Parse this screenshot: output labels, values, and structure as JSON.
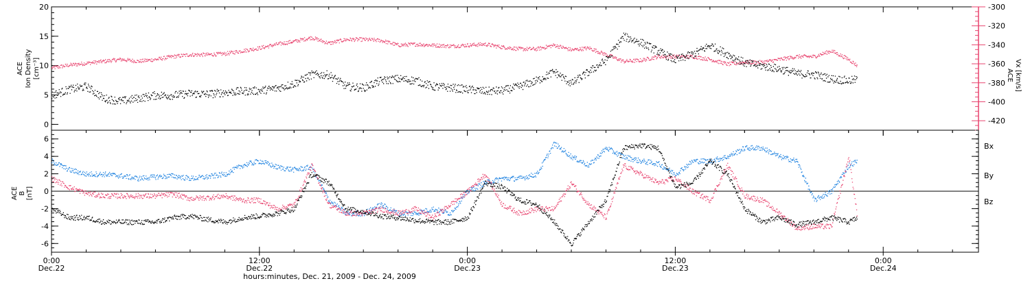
{
  "colors": {
    "black": "#000000",
    "pink": "#e8436e",
    "blue": "#1e82e0"
  },
  "xaxis": {
    "title": "hours:minutes, Dec. 21, 2009 - Dec. 24, 2009",
    "ticks": [
      {
        "hours": 0,
        "time": "0:00",
        "date": "Dec.22"
      },
      {
        "hours": 12,
        "time": "12:00",
        "date": "Dec.22"
      },
      {
        "hours": 24,
        "time": "0:00",
        "date": "Dec.23"
      },
      {
        "hours": 36,
        "time": "12:00",
        "date": "Dec.23"
      },
      {
        "hours": 48,
        "time": "0:00",
        "date": "Dec.24"
      }
    ],
    "range_hours": [
      0,
      53.5
    ]
  },
  "chart_data": [
    {
      "type": "scatter",
      "panel": "top",
      "left_axis": {
        "label_lines": [
          "ACE",
          "Ion Density",
          "[cm⁻³]"
        ],
        "ylim": [
          -1,
          20
        ],
        "ticks": [
          0,
          5,
          10,
          15,
          20
        ]
      },
      "right_axis": {
        "label": "ACE Vx [km/s]",
        "label_lines": [
          "ACE",
          "Vx [km/s]"
        ],
        "ylim": [
          -430,
          -300
        ],
        "ticks": [
          -420,
          -400,
          -380,
          -360,
          -340,
          -320,
          -300
        ]
      },
      "series": [
        {
          "axis": "left",
          "color_key": "black",
          "points": [
            [
              0,
              5
            ],
            [
              1,
              6
            ],
            [
              2,
              6.5
            ],
            [
              3,
              4.5
            ],
            [
              4,
              4
            ],
            [
              5,
              4.5
            ],
            [
              6,
              5
            ],
            [
              7,
              5
            ],
            [
              8,
              5.3
            ],
            [
              9,
              5.2
            ],
            [
              10,
              5.5
            ],
            [
              11,
              5.7
            ],
            [
              12,
              5.8
            ],
            [
              13,
              6.2
            ],
            [
              14,
              7
            ],
            [
              15,
              8.5
            ],
            [
              16,
              8.5
            ],
            [
              17,
              6.5
            ],
            [
              18,
              6.3
            ],
            [
              19,
              7.5
            ],
            [
              20,
              7.8
            ],
            [
              21,
              7.5
            ],
            [
              22,
              6.5
            ],
            [
              23,
              6.3
            ],
            [
              24,
              6
            ],
            [
              25,
              5.7
            ],
            [
              26,
              5.8
            ],
            [
              27,
              6.5
            ],
            [
              28,
              7.5
            ],
            [
              29,
              9
            ],
            [
              30,
              7
            ],
            [
              31,
              9
            ],
            [
              32,
              11
            ],
            [
              33,
              15
            ],
            [
              34,
              14
            ],
            [
              35,
              12.5
            ],
            [
              36,
              11
            ],
            [
              37,
              12
            ],
            [
              38,
              13.5
            ],
            [
              39,
              12
            ],
            [
              40,
              10.5
            ],
            [
              41,
              10
            ],
            [
              42,
              9.5
            ],
            [
              43,
              8.7
            ],
            [
              44,
              8.5
            ],
            [
              45,
              7.8
            ],
            [
              46,
              7.5
            ],
            [
              46.5,
              7.7
            ]
          ]
        },
        {
          "axis": "right",
          "color_key": "pink",
          "points": [
            [
              0,
              -364
            ],
            [
              1,
              -361
            ],
            [
              2,
              -359
            ],
            [
              3,
              -357
            ],
            [
              4,
              -355
            ],
            [
              5,
              -357
            ],
            [
              6,
              -355
            ],
            [
              7,
              -352
            ],
            [
              8,
              -350
            ],
            [
              9,
              -350
            ],
            [
              10,
              -349
            ],
            [
              11,
              -346
            ],
            [
              12,
              -343
            ],
            [
              13,
              -339
            ],
            [
              14,
              -336
            ],
            [
              15,
              -332
            ],
            [
              16,
              -338
            ],
            [
              17,
              -334
            ],
            [
              18,
              -334
            ],
            [
              19,
              -335
            ],
            [
              20,
              -340
            ],
            [
              21,
              -339
            ],
            [
              22,
              -340
            ],
            [
              23,
              -341
            ],
            [
              24,
              -340
            ],
            [
              25,
              -339
            ],
            [
              26,
              -342
            ],
            [
              27,
              -344
            ],
            [
              28,
              -344
            ],
            [
              29,
              -340
            ],
            [
              30,
              -345
            ],
            [
              31,
              -343
            ],
            [
              32,
              -350
            ],
            [
              33,
              -357
            ],
            [
              34,
              -356
            ],
            [
              35,
              -352
            ],
            [
              36,
              -352
            ],
            [
              37,
              -352
            ],
            [
              38,
              -355
            ],
            [
              39,
              -360
            ],
            [
              40,
              -358
            ],
            [
              41,
              -358
            ],
            [
              42,
              -355
            ],
            [
              43,
              -352
            ],
            [
              44,
              -352
            ],
            [
              45,
              -346
            ],
            [
              46,
              -355
            ],
            [
              46.5,
              -362
            ]
          ]
        }
      ]
    },
    {
      "type": "scatter",
      "panel": "bottom",
      "left_axis": {
        "label_lines": [
          "ACE",
          "B",
          "[nT]"
        ],
        "ylim": [
          -7,
          7
        ],
        "ticks": [
          -6,
          -4,
          -2,
          0,
          2,
          4,
          6
        ]
      },
      "legend_position": "right",
      "series": [
        {
          "name": "Bx",
          "color_key": "black",
          "points": [
            [
              0,
              -2
            ],
            [
              1,
              -3
            ],
            [
              2,
              -3
            ],
            [
              3,
              -3.5
            ],
            [
              4,
              -3.5
            ],
            [
              5,
              -3.5
            ],
            [
              6,
              -3.5
            ],
            [
              7,
              -3
            ],
            [
              8,
              -2.8
            ],
            [
              9,
              -3.2
            ],
            [
              10,
              -3.5
            ],
            [
              11,
              -3
            ],
            [
              12,
              -2.8
            ],
            [
              13,
              -2.5
            ],
            [
              14,
              -2
            ],
            [
              15,
              2
            ],
            [
              16,
              1
            ],
            [
              17,
              -2
            ],
            [
              18,
              -2.3
            ],
            [
              19,
              -2.8
            ],
            [
              20,
              -3
            ],
            [
              21,
              -3.3
            ],
            [
              22,
              -3.5
            ],
            [
              23,
              -3.5
            ],
            [
              24,
              -3
            ],
            [
              25,
              1
            ],
            [
              26,
              0.5
            ],
            [
              27,
              -1
            ],
            [
              28,
              -1.5
            ],
            [
              29,
              -3.5
            ],
            [
              30,
              -6
            ],
            [
              31,
              -3.5
            ],
            [
              32,
              -1
            ],
            [
              33,
              5
            ],
            [
              34,
              5.3
            ],
            [
              35,
              5
            ],
            [
              36,
              0.5
            ],
            [
              37,
              1
            ],
            [
              38,
              3.5
            ],
            [
              39,
              2
            ],
            [
              40,
              -2
            ],
            [
              41,
              -3.5
            ],
            [
              42,
              -3
            ],
            [
              43,
              -3.8
            ],
            [
              44,
              -3.5
            ],
            [
              45,
              -3
            ],
            [
              46,
              -3.5
            ],
            [
              46.5,
              -3
            ]
          ]
        },
        {
          "name": "By",
          "color_key": "blue",
          "points": [
            [
              0,
              3.5
            ],
            [
              1,
              2.5
            ],
            [
              2,
              2
            ],
            [
              3,
              2
            ],
            [
              4,
              1.8
            ],
            [
              5,
              1.5
            ],
            [
              6,
              1.7
            ],
            [
              7,
              1.8
            ],
            [
              8,
              1.5
            ],
            [
              9,
              1.7
            ],
            [
              10,
              2
            ],
            [
              11,
              3
            ],
            [
              12,
              3.5
            ],
            [
              13,
              2.8
            ],
            [
              14,
              2.5
            ],
            [
              15,
              2.8
            ],
            [
              16,
              -1
            ],
            [
              17,
              -2.5
            ],
            [
              18,
              -2.5
            ],
            [
              19,
              -1.5
            ],
            [
              20,
              -2.5
            ],
            [
              21,
              -2.5
            ],
            [
              22,
              -2
            ],
            [
              23,
              -2.5
            ],
            [
              24,
              0
            ],
            [
              25,
              1
            ],
            [
              26,
              1.5
            ],
            [
              27,
              1.5
            ],
            [
              28,
              2
            ],
            [
              29,
              5.5
            ],
            [
              30,
              4
            ],
            [
              31,
              3
            ],
            [
              32,
              5
            ],
            [
              33,
              4
            ],
            [
              34,
              3.5
            ],
            [
              35,
              3.2
            ],
            [
              36,
              2
            ],
            [
              37,
              3.5
            ],
            [
              38,
              3.5
            ],
            [
              39,
              4
            ],
            [
              40,
              5
            ],
            [
              41,
              5
            ],
            [
              42,
              4
            ],
            [
              43,
              3.5
            ],
            [
              44,
              -1
            ],
            [
              45,
              0
            ],
            [
              46,
              3
            ],
            [
              46.5,
              3.5
            ]
          ]
        },
        {
          "name": "Bz",
          "color_key": "pink",
          "points": [
            [
              0,
              1.5
            ],
            [
              1,
              0.5
            ],
            [
              2,
              -0.2
            ],
            [
              3,
              -0.5
            ],
            [
              4,
              -0.5
            ],
            [
              5,
              -0.5
            ],
            [
              6,
              -0.5
            ],
            [
              7,
              -0.3
            ],
            [
              8,
              -0.8
            ],
            [
              9,
              -0.7
            ],
            [
              10,
              -0.5
            ],
            [
              11,
              -1
            ],
            [
              12,
              -1
            ],
            [
              13,
              -2
            ],
            [
              14,
              -1.5
            ],
            [
              15,
              3
            ],
            [
              16,
              -1.5
            ],
            [
              17,
              -2.5
            ],
            [
              18,
              -2.5
            ],
            [
              19,
              -2
            ],
            [
              20,
              -2.5
            ],
            [
              21,
              -2
            ],
            [
              22,
              -3
            ],
            [
              23,
              -1.5
            ],
            [
              24,
              0
            ],
            [
              25,
              2
            ],
            [
              26,
              -1.5
            ],
            [
              27,
              -2.5
            ],
            [
              28,
              -2
            ],
            [
              29,
              -2
            ],
            [
              30,
              1
            ],
            [
              31,
              -1.5
            ],
            [
              32,
              -3
            ],
            [
              33,
              3
            ],
            [
              34,
              2
            ],
            [
              35,
              1
            ],
            [
              36,
              1.5
            ],
            [
              37,
              0
            ],
            [
              38,
              -1
            ],
            [
              39,
              3
            ],
            [
              40,
              -0.5
            ],
            [
              41,
              -1
            ],
            [
              42,
              -2.5
            ],
            [
              43,
              -4.2
            ],
            [
              44,
              -4
            ],
            [
              45,
              -4
            ],
            [
              46,
              4
            ],
            [
              46.5,
              -3
            ]
          ]
        }
      ]
    }
  ]
}
